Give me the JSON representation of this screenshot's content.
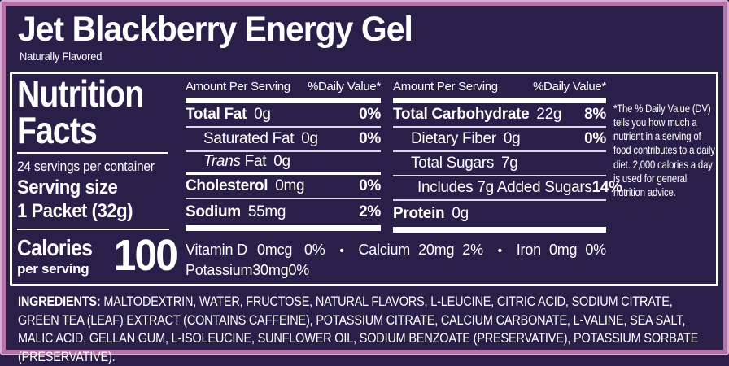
{
  "header": {
    "title": "Jet Blackberry Energy Gel",
    "subtitle": "Naturally Flavored"
  },
  "nutrition": {
    "title_line1": "Nutrition",
    "title_line2": "Facts",
    "servings": "24 servings per container",
    "serving_size_label": "Serving size",
    "serving_size_value": "1 Packet (32g)",
    "calories_label": "Calories",
    "calories_sub": "per serving",
    "calories_value": "100"
  },
  "fat_table": {
    "header_left": "Amount Per Serving",
    "header_right": "%Daily Value*",
    "rows": [
      {
        "name": "Total Fat",
        "amount": "0g",
        "dv": "0%"
      },
      {
        "name": "Saturated Fat",
        "amount": "0g",
        "dv": "0%"
      },
      {
        "name_italic": "Trans",
        "name": "Fat",
        "amount": "0g",
        "dv": ""
      },
      {
        "name": "Cholesterol",
        "amount": "0mg",
        "dv": "0%"
      },
      {
        "name": "Sodium",
        "amount": "55mg",
        "dv": "2%"
      }
    ]
  },
  "carb_table": {
    "header_left": "Amount Per Serving",
    "header_right": "%Daily Value*",
    "rows": [
      {
        "name": "Total Carbohydrate",
        "amount": "22g",
        "dv": "8%"
      },
      {
        "name": "Dietary Fiber",
        "amount": "0g",
        "dv": "0%"
      },
      {
        "name": "Total Sugars",
        "amount": "7g",
        "dv": ""
      },
      {
        "name": "Includes 7g Added Sugars",
        "amount": "",
        "dv": "14%"
      },
      {
        "name": "Protein",
        "amount": "0g",
        "dv": ""
      }
    ]
  },
  "micronutrients": {
    "bullet": "•",
    "vitamin_d": {
      "name": "Vitamin D",
      "amount": "0mcg",
      "dv": "0%"
    },
    "calcium": {
      "name": "Calcium",
      "amount": "20mg",
      "dv": "2%"
    },
    "iron": {
      "name": "Iron",
      "amount": "0mg",
      "dv": "0%"
    },
    "potassium": {
      "name": "Potassium",
      "amount": "30mg",
      "dv": "0%"
    }
  },
  "footnote": "*The % Daily Value (DV) tells you how much a nutrient in a serving of food contributes to a daily diet. 2,000 calories a day is used for general nutrition advice.",
  "ingredients": {
    "label": "INGREDIENTS:",
    "text": "MALTODEXTRIN, WATER, FRUCTOSE, NATURAL FLAVORS, L-LEUCINE, CITRIC ACID, SODIUM CITRATE, GREEN TEA (LEAF) EXTRACT (CONTAINS CAFFEINE), POTASSIUM CITRATE, CALCIUM CARBONATE, L-VALINE, SEA SALT, MALIC ACID, GELLAN GUM, L-ISOLEUCINE, SUNFLOWER OIL, SODIUM BENZOATE (PRESERVATIVE), POTASSIUM SORBATE (PRESERVATIVE)."
  },
  "colors": {
    "background": "#2b1f4a",
    "border_pink": "#b273a8",
    "border_pink_light": "#d9accf",
    "text": "#ffffff"
  }
}
